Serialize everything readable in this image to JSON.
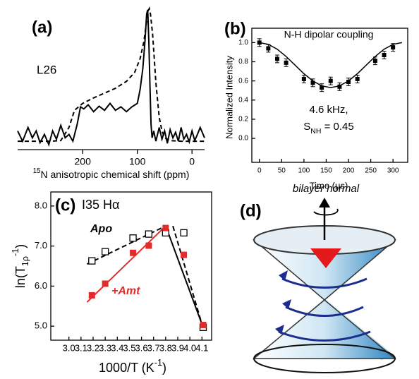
{
  "chart_data": [
    {
      "type": "line",
      "title": "(a)",
      "annotation": "L26",
      "x_label": [
        "15",
        "N anisotropic chemical shift (ppm)"
      ],
      "xlim": [
        319,
        -23
      ],
      "xticks": [
        200,
        100,
        0
      ],
      "series": [
        {
          "color": "#000000",
          "dash": false,
          "x": [
            319,
            310,
            300,
            292,
            285,
            278,
            270,
            262,
            255,
            248,
            240,
            232,
            225,
            218,
            210,
            204,
            198,
            190,
            180,
            170,
            160,
            150,
            140,
            130,
            120,
            110,
            100,
            95,
            90,
            86,
            83,
            81,
            79,
            77,
            75,
            73,
            70,
            66,
            60,
            55,
            50,
            45,
            40,
            35,
            30,
            25,
            20,
            15,
            10,
            5,
            0,
            -5,
            -10,
            -15,
            -23
          ],
          "values": [
            20,
            5,
            25,
            10,
            20,
            3,
            15,
            0,
            20,
            8,
            28,
            10,
            15,
            5,
            30,
            55,
            52,
            58,
            48,
            56,
            50,
            60,
            50,
            55,
            48,
            55,
            60,
            80,
            110,
            150,
            190,
            196,
            150,
            90,
            30,
            10,
            20,
            5,
            25,
            8,
            20,
            2,
            22,
            10,
            18,
            5,
            25,
            8,
            15,
            4,
            20,
            6,
            15,
            25,
            10
          ]
        },
        {
          "color": "#000000",
          "dash": true,
          "x": [
            319,
            300,
            280,
            260,
            240,
            225,
            215,
            200,
            180,
            160,
            140,
            120,
            105,
            95,
            88,
            83,
            80,
            78,
            76,
            72,
            66,
            60,
            55,
            50,
            40,
            20,
            0,
            -23
          ],
          "values": [
            5,
            5,
            5,
            5,
            6,
            25,
            50,
            60,
            68,
            75,
            82,
            92,
            105,
            125,
            150,
            180,
            195,
            198,
            190,
            160,
            90,
            40,
            20,
            10,
            6,
            5,
            5,
            5
          ]
        }
      ]
    },
    {
      "type": "scatter",
      "title": "(b)",
      "annotation": "N-H dipolar coupling",
      "fit_label": [
        "4.6 kHz,"
      ],
      "order_label": [
        "S",
        "NH",
        " = 0.45"
      ],
      "x_label": "Time (μs)",
      "y_label": "Normalized Intensity",
      "xlim": [
        -17,
        333
      ],
      "xticks": [
        0,
        50,
        100,
        150,
        200,
        250,
        300
      ],
      "ylim": [
        -0.25,
        1.15
      ],
      "yticks": [
        {
          "value": 0,
          "label": "0.0"
        },
        0.2,
        0.4,
        0.6,
        0.8,
        {
          "value": 1,
          "label": "1.0"
        }
      ],
      "series": [
        {
          "color": "#000000",
          "x": [
            0,
            20,
            40,
            60,
            100,
            120,
            140,
            160,
            180,
            200,
            220,
            260,
            280,
            300
          ],
          "values": [
            1.0,
            0.94,
            0.83,
            0.79,
            0.62,
            0.58,
            0.53,
            0.6,
            0.54,
            0.59,
            0.62,
            0.81,
            0.87,
            0.95
          ],
          "errors": [
            0.04,
            0.04,
            0.04,
            0.04,
            0.04,
            0.04,
            0.04,
            0.04,
            0.04,
            0.04,
            0.04,
            0.04,
            0.04,
            0.04
          ]
        }
      ],
      "fit": {
        "x": [
          0,
          20,
          40,
          60,
          80,
          100,
          120,
          140,
          160,
          180,
          200,
          220,
          240,
          260,
          280,
          300,
          320
        ],
        "values": [
          1.0,
          0.982,
          0.931,
          0.855,
          0.765,
          0.675,
          0.6,
          0.548,
          0.53,
          0.548,
          0.6,
          0.675,
          0.765,
          0.855,
          0.931,
          0.982,
          1.0
        ]
      }
    },
    {
      "type": "scatter",
      "title": "(c)",
      "annotation": "I35 Hα",
      "x_label": [
        "1000/T (K",
        "-1",
        ")"
      ],
      "y_label": [
        "ln(T",
        "1ρ",
        "-1",
        ")"
      ],
      "xlim": [
        2.85,
        4.18
      ],
      "xticks": [
        {
          "value": 3,
          "label": "3.0"
        },
        3.1,
        3.2,
        3.3,
        3.4,
        3.5,
        3.6,
        3.7,
        3.8,
        3.9,
        {
          "value": 4,
          "label": "4.0"
        },
        4.1
      ],
      "ylim": [
        4.65,
        8.35
      ],
      "yticks": [
        {
          "value": 5,
          "label": "5.0"
        },
        {
          "value": 6,
          "label": "6.0"
        },
        {
          "value": 7,
          "label": "7.0"
        },
        {
          "value": 8,
          "label": "8.0"
        }
      ],
      "series": [
        {
          "name": "Apo",
          "color": "#000000",
          "marker": "open-square",
          "x": [
            3.19,
            3.3,
            3.53,
            3.66,
            3.8,
            3.95,
            4.11
          ],
          "values": [
            6.63,
            6.86,
            7.2,
            7.3,
            7.33,
            7.33,
            4.97
          ]
        },
        {
          "name": "+Amt",
          "color": "#e32b2b",
          "marker": "square",
          "x": [
            3.19,
            3.3,
            3.53,
            3.66,
            3.8,
            3.95,
            4.11
          ],
          "values": [
            5.77,
            6.06,
            6.83,
            7.01,
            7.45,
            6.78,
            5.03
          ]
        }
      ],
      "fits": [
        {
          "color": "#000000",
          "dash": true,
          "x": [
            3.15,
            3.8
          ],
          "values": [
            6.55,
            7.5
          ]
        },
        {
          "color": "#000000",
          "dash": true,
          "x": [
            3.86,
            4.1
          ],
          "values": [
            7.5,
            5.05
          ]
        },
        {
          "color": "#e32b2b",
          "dash": false,
          "x": [
            3.15,
            3.8
          ],
          "values": [
            5.6,
            7.5
          ]
        },
        {
          "color": "#000000",
          "dash": false,
          "x": [
            3.8,
            4.1
          ],
          "values": [
            7.5,
            5.05
          ]
        }
      ]
    },
    {
      "type": "diagram",
      "title": "(d)",
      "annotation": "bilayer normal"
    }
  ]
}
